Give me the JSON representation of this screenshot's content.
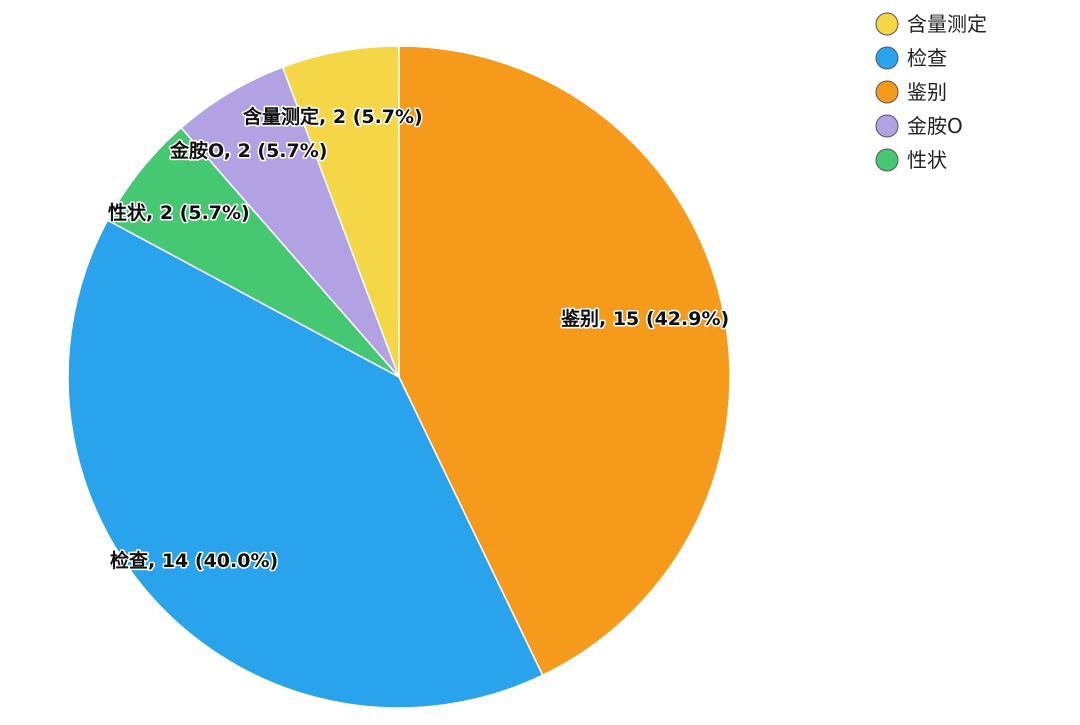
{
  "chart_data": {
    "type": "pie",
    "title": "",
    "start_angle_deg": 0,
    "direction": "clockwise",
    "legend_position": "top-right",
    "slices": [
      {
        "name": "鉴别",
        "value": 15,
        "percent": "42.9%",
        "label": "鉴别, 15 (42.9%)",
        "color": "#F59A1B"
      },
      {
        "name": "检查",
        "value": 14,
        "percent": "40.0%",
        "label": "检查, 14 (40.0%)",
        "color": "#29A3EB"
      },
      {
        "name": "性状",
        "value": 2,
        "percent": "5.7%",
        "label": "性状, 2 (5.7%)",
        "color": "#46C872"
      },
      {
        "name": "金胺O",
        "value": 2,
        "percent": "5.7%",
        "label": "金胺O, 2 (5.7%)",
        "color": "#B3A2E3"
      },
      {
        "name": "含量测定",
        "value": 2,
        "percent": "5.7%",
        "label": "含量测定, 2 (5.7%)",
        "color": "#F5D647"
      }
    ],
    "legend": [
      {
        "name": "含量测定",
        "color": "#F5D647"
      },
      {
        "name": "检查",
        "color": "#29A3EB"
      },
      {
        "name": "鉴别",
        "color": "#F59A1B"
      },
      {
        "name": "金胺O",
        "color": "#B3A2E3"
      },
      {
        "name": "性状",
        "color": "#46C872"
      }
    ]
  }
}
